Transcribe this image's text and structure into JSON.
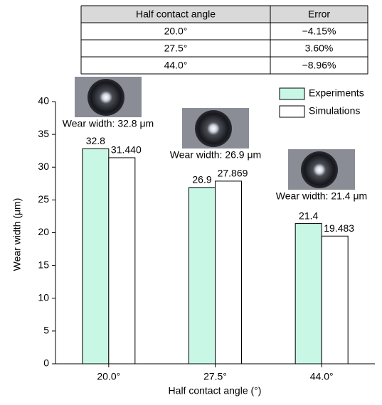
{
  "table": {
    "header": [
      "Half contact angle",
      "Error"
    ],
    "rows": [
      [
        "20.0°",
        "−4.15%"
      ],
      [
        "27.5°",
        "3.60%"
      ],
      [
        "44.0°",
        "−8.96%"
      ]
    ]
  },
  "chart_data": {
    "type": "bar",
    "x_label": "Half contact angle (°)",
    "y_label": "Wear width (μm)",
    "categories": [
      "20.0°",
      "27.5°",
      "44.0°"
    ],
    "series": [
      {
        "name": "Experiments",
        "color": "#c8f7e6",
        "values": [
          32.8,
          26.9,
          21.4
        ]
      },
      {
        "name": "Simulations",
        "color": "#ffffff",
        "values": [
          31.44,
          27.869,
          19.483
        ],
        "value_labels": [
          "31.440",
          "27.869",
          "19.483"
        ]
      }
    ],
    "ylim": [
      0,
      40
    ],
    "yticks": [
      0,
      5,
      10,
      15,
      20,
      25,
      30,
      35,
      40
    ],
    "grid": false,
    "legend": "upper right",
    "annotations": [
      "Wear width: 32.8 μm",
      "Wear width: 26.9 μm",
      "Wear width: 21.4 μm"
    ]
  }
}
